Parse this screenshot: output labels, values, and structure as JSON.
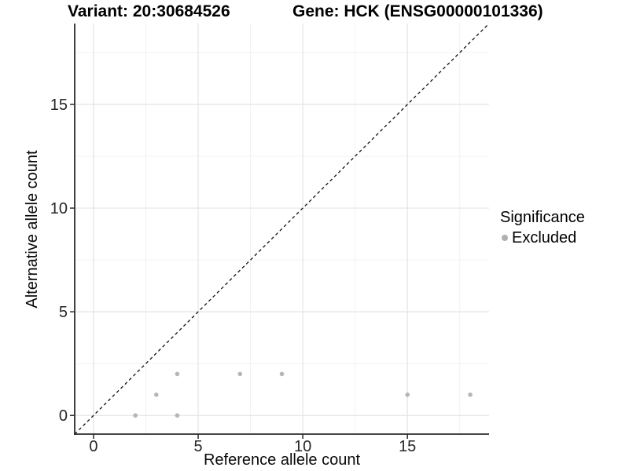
{
  "chart_data": {
    "type": "scatter",
    "titles": [
      "Variant: 20:30684526",
      "Gene: HCK (ENSG00000101336)"
    ],
    "xlabel": "Reference allele count",
    "ylabel": "Alternative allele count",
    "xlim": [
      -0.9,
      18.9
    ],
    "ylim": [
      -0.9,
      18.9
    ],
    "x_ticks": [
      0,
      5,
      10,
      15
    ],
    "y_ticks": [
      0,
      5,
      10,
      15
    ],
    "minor_gridlines": [
      2.5,
      7.5,
      12.5,
      17.5
    ],
    "grid": "on",
    "identity_line": {
      "style": "dashed",
      "equation": "y = x",
      "from": -0.9,
      "to": 18.9
    },
    "series": [
      {
        "name": "Excluded",
        "color": "#b0b0b0",
        "points": [
          [
            2,
            0
          ],
          [
            3,
            1
          ],
          [
            4,
            0
          ],
          [
            4,
            2
          ],
          [
            7,
            2
          ],
          [
            9,
            2
          ],
          [
            15,
            1
          ],
          [
            18,
            1
          ]
        ]
      }
    ],
    "legend": {
      "title": "Significance",
      "position": "right",
      "items": [
        {
          "label": "Excluded",
          "color": "#b0b0b0",
          "marker": "circle"
        }
      ]
    },
    "colors": {
      "background": "#ffffff",
      "point": "#b0b0b0",
      "grid_major": "#e4e4e4",
      "grid_minor": "#f0f0f0",
      "axis_line": "#2b2b2b",
      "tick_label": "#262626",
      "identity_line": "#111111"
    }
  }
}
